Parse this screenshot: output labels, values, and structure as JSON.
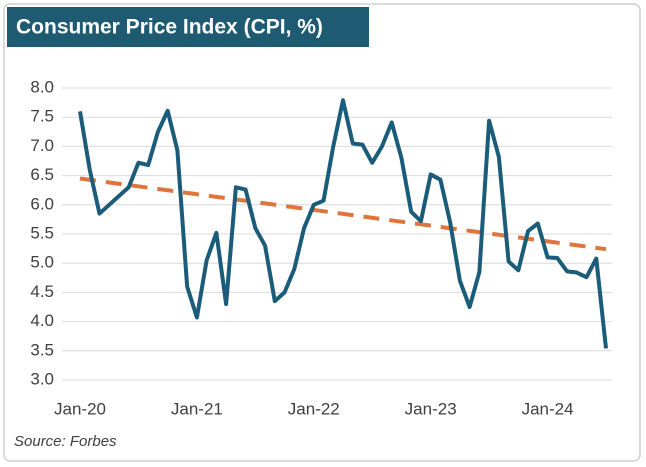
{
  "chart_data": {
    "type": "line",
    "title": "Consumer Price Index (CPI, %)",
    "source": "Source: Forbes",
    "categories": [
      "Jan-20",
      null,
      null,
      null,
      null,
      null,
      null,
      null,
      null,
      null,
      null,
      null,
      "Jan-21",
      null,
      null,
      null,
      null,
      null,
      null,
      null,
      null,
      null,
      null,
      null,
      "Jan-22",
      null,
      null,
      null,
      null,
      null,
      null,
      null,
      null,
      null,
      null,
      null,
      "Jan-23",
      null,
      null,
      null,
      null,
      null,
      null,
      null,
      null,
      null,
      null,
      null,
      "Jan-24",
      null,
      null,
      null,
      null,
      null,
      null
    ],
    "series": [
      {
        "color": "#1b5c7a",
        "values": [
          7.6,
          6.6,
          5.85,
          6.0,
          6.15,
          6.3,
          6.72,
          6.68,
          7.25,
          7.61,
          6.93,
          4.6,
          4.07,
          5.05,
          5.52,
          4.3,
          6.3,
          6.26,
          5.6,
          5.3,
          4.35,
          4.5,
          4.9,
          5.6,
          6.0,
          6.07,
          7.0,
          7.79,
          7.05,
          7.03,
          6.72,
          7.0,
          7.41,
          6.8,
          5.88,
          5.72,
          6.52,
          6.43,
          5.7,
          4.7,
          4.25,
          4.85,
          7.44,
          6.82,
          5.03,
          4.88,
          5.55,
          5.68,
          5.1,
          5.09,
          4.86,
          4.84,
          4.76,
          5.08,
          3.54
        ]
      }
    ],
    "trendline": {
      "color": "#e0743a",
      "start": 6.45,
      "end": 5.24
    },
    "ylim": [
      3,
      8
    ],
    "yticks": [
      {
        "value": 3,
        "label": "3.0"
      },
      3.5,
      {
        "value": 4,
        "label": "4.0"
      },
      4.5,
      {
        "value": 5,
        "label": "5.0"
      },
      5.5,
      {
        "value": 6,
        "label": "6.0"
      },
      6.5,
      {
        "value": 7,
        "label": "7.0"
      },
      7.5,
      {
        "value": 8,
        "label": "8.0"
      }
    ],
    "grid": true
  }
}
